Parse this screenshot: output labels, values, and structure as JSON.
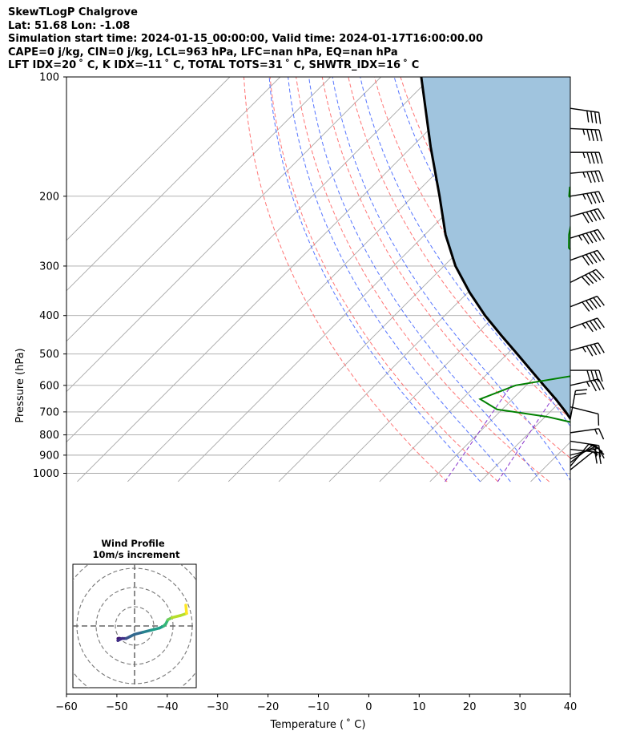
{
  "header": {
    "line1": "SkewTLogP Chalgrove",
    "line2": "Lat: 51.68   Lon: -1.08",
    "line3": "Simulation start time: 2024-01-15_00:00:00, Valid time: 2024-01-17T16:00:00.00",
    "line4": "CAPE=0 j/kg, CIN=0 j/kg, LCL=963 hPa, LFC=nan hPa, EQ=nan hPa",
    "line5": "LFT IDX=20 ˚ C, K IDX=-11 ˚ C, TOTAL TOTS=31 ˚ C, SHWTR_IDX=16 ˚ C"
  },
  "colors": {
    "temperature": "#ee0000",
    "dewpoint": "#008000",
    "parcel": "#000000",
    "fill": "#a0c4de",
    "dry_adiabat": "#ff6666",
    "moist_adiabat": "#4466ff",
    "isotherm": "#a8a8a8",
    "mixing_ratio": "#8833cc"
  },
  "chart_data": [
    {
      "type": "line",
      "subtype": "skew-T log-P",
      "xlabel": "Temperature ( ˚ C)",
      "ylabel": "Pressure (hPa)",
      "xlim": [
        -60,
        40
      ],
      "ylim": [
        1050,
        100
      ],
      "x_ticks": [
        -60,
        -50,
        -40,
        -30,
        -20,
        -10,
        0,
        10,
        20,
        30,
        40
      ],
      "x_tick_labels": [
        "−60",
        "−50",
        "−40",
        "−30",
        "−20",
        "−10",
        "0",
        "10",
        "20",
        "30",
        "40"
      ],
      "y_ticks": [
        1000,
        900,
        800,
        700,
        600,
        500,
        400,
        300,
        200,
        100
      ],
      "y_tick_labels": [
        "1000",
        "900",
        "800",
        "700",
        "600",
        "500",
        "400",
        "300",
        "200",
        "100"
      ],
      "grid": true,
      "series": [
        {
          "key": "temperature",
          "points": [
            [
              985,
              1.7
            ],
            [
              960,
              0.9
            ],
            [
              900,
              0.2
            ],
            [
              850,
              -0.3
            ],
            [
              800,
              -1.0
            ],
            [
              760,
              -1.2
            ],
            [
              700,
              -1.4
            ],
            [
              650,
              -2.4
            ],
            [
              600,
              -4.3
            ],
            [
              550,
              -7.5
            ],
            [
              500,
              -10.7
            ],
            [
              470,
              -14.2
            ],
            [
              450,
              -16.4
            ],
            [
              420,
              -19.7
            ],
            [
              400,
              -22.1
            ],
            [
              350,
              -27.6
            ],
            [
              300,
              -34.4
            ],
            [
              250,
              -42.2
            ],
            [
              230,
              -46.4
            ],
            [
              210,
              -50.2
            ],
            [
              200,
              -49.6
            ],
            [
              185,
              -48.5
            ],
            [
              170,
              -48.3
            ],
            [
              155,
              -48.6
            ],
            [
              140,
              -49.6
            ],
            [
              125,
              -51.6
            ],
            [
              110,
              -53.4
            ],
            [
              100,
              -55.1
            ]
          ]
        },
        {
          "key": "dewpoint",
          "points": [
            [
              985,
              0.9
            ],
            [
              960,
              -0.3
            ],
            [
              900,
              -1.3
            ],
            [
              850,
              -3.0
            ],
            [
              800,
              -5.8
            ],
            [
              760,
              -9.7
            ],
            [
              720,
              -19.6
            ],
            [
              690,
              -31.0
            ],
            [
              650,
              -36.4
            ],
            [
              600,
              -32.1
            ],
            [
              550,
              -17.3
            ],
            [
              500,
              -16.8
            ],
            [
              470,
              -19.9
            ],
            [
              440,
              -23.9
            ],
            [
              400,
              -28.2
            ],
            [
              370,
              -31.7
            ],
            [
              340,
              -35.8
            ],
            [
              310,
              -43.2
            ],
            [
              290,
              -44.1
            ],
            [
              270,
              -48.8
            ],
            [
              250,
              -51.4
            ],
            [
              225,
              -54.3
            ],
            [
              210,
              -55.4
            ],
            [
              200,
              -59.0
            ],
            [
              190,
              -60.6
            ],
            [
              175,
              -57.4
            ],
            [
              165,
              -58.0
            ],
            [
              150,
              -61.0
            ],
            [
              135,
              -63.1
            ],
            [
              125,
              -61.8
            ],
            [
              115,
              -58.1
            ],
            [
              100,
              -57.6
            ]
          ]
        },
        {
          "key": "parcel",
          "points": [
            [
              985,
              1.7
            ],
            [
              963,
              0.9
            ],
            [
              900,
              -3.6
            ],
            [
              850,
              -6.2
            ],
            [
              800,
              -9.2
            ],
            [
              750,
              -12.9
            ],
            [
              700,
              -16.9
            ],
            [
              650,
              -21.4
            ],
            [
              600,
              -26.5
            ],
            [
              550,
              -32.0
            ],
            [
              500,
              -38.0
            ],
            [
              450,
              -44.7
            ],
            [
              400,
              -52.0
            ],
            [
              350,
              -59.6
            ],
            [
              300,
              -67.7
            ],
            [
              250,
              -75.9
            ],
            [
              200,
              -84.7
            ],
            [
              150,
              -96.3
            ],
            [
              100,
              -112.0
            ]
          ]
        }
      ],
      "hodograph": {
        "title": "Wind Profile",
        "subtitle": "10m/s increment",
        "ring_step": 10,
        "points": [
          [
            -4,
            -3
          ],
          [
            -3.5,
            -3
          ],
          [
            -4,
            -3.5
          ],
          [
            -3,
            -3
          ],
          [
            -2,
            -3
          ],
          [
            -1,
            -2.5
          ],
          [
            0,
            -2
          ],
          [
            2,
            -1.5
          ],
          [
            4,
            -1
          ],
          [
            6,
            -0.5
          ],
          [
            7,
            0
          ],
          [
            7.5,
            0.5
          ],
          [
            8,
            1.5
          ],
          [
            9,
            2
          ],
          [
            11,
            2.5
          ],
          [
            12.5,
            3
          ],
          [
            12.3,
            5
          ]
        ]
      },
      "wind_barbs": [
        {
          "p": 980,
          "u": -2.5,
          "v": -2
        },
        {
          "p": 960,
          "u": -2.5,
          "v": -3
        },
        {
          "p": 940,
          "u": -4.5,
          "v": -3.5
        },
        {
          "p": 920,
          "u": -6,
          "v": -3
        },
        {
          "p": 900,
          "u": -8,
          "v": -2
        },
        {
          "p": 870,
          "u": -9,
          "v": 1
        },
        {
          "p": 830,
          "u": -10,
          "v": 1.5
        },
        {
          "p": 790,
          "u": -7,
          "v": -1
        },
        {
          "p": 730,
          "u": -2,
          "v": -11
        },
        {
          "p": 680,
          "u": -6,
          "v": 1.5
        },
        {
          "p": 600,
          "u": -18,
          "v": -4
        },
        {
          "p": 550,
          "u": -20,
          "v": 0
        },
        {
          "p": 490,
          "u": -22,
          "v": -6
        },
        {
          "p": 430,
          "u": -22,
          "v": -8
        },
        {
          "p": 380,
          "u": -23,
          "v": -9
        },
        {
          "p": 330,
          "u": -24,
          "v": -12
        },
        {
          "p": 290,
          "u": -25,
          "v": -9
        },
        {
          "p": 255,
          "u": -26,
          "v": -8
        },
        {
          "p": 225,
          "u": -25,
          "v": -7
        },
        {
          "p": 200,
          "u": -24,
          "v": -4
        },
        {
          "p": 175,
          "u": -23,
          "v": -2
        },
        {
          "p": 155,
          "u": -22,
          "v": 0
        },
        {
          "p": 135,
          "u": -22,
          "v": 1
        },
        {
          "p": 120,
          "u": -21,
          "v": 3
        }
      ]
    }
  ]
}
